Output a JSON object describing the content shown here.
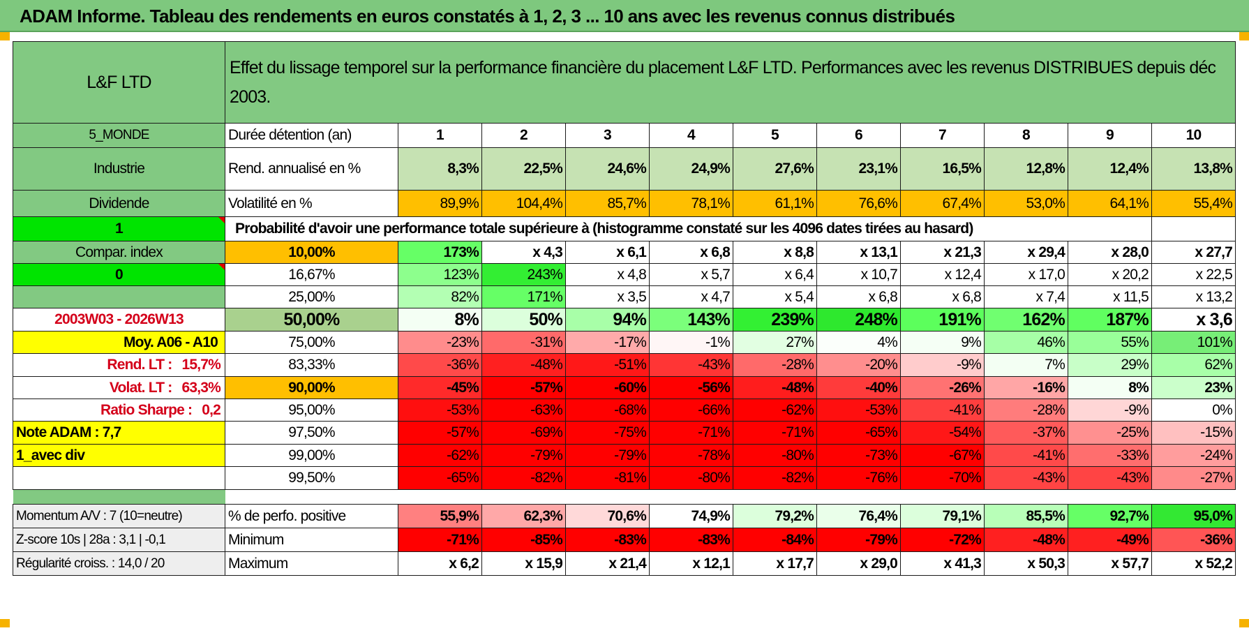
{
  "title": "ADAM Informe. Tableau des rendements en euros constatés à 1, 2, 3 ... 10 ans avec les revenus connus distribués",
  "header": {
    "fund": "L&F LTD",
    "description": "Effet du lissage temporel sur la performance financière du placement L&F LTD. Performances avec les revenus DISTRIBUES depuis déc 2003."
  },
  "left": {
    "category": "5_MONDE",
    "sector": "Industrie",
    "dividend": "Dividende",
    "input_1": "1",
    "compar_index": "Compar. index",
    "input_0": "0",
    "period": "2003W03 - 2026W13",
    "moy": "Moy. A06 - A10",
    "rend_lt_label": "Rend. LT :",
    "rend_lt_value": "15,7%",
    "volat_lt_label": "Volat. LT :",
    "volat_lt_value": "63,3%",
    "sharpe_label": "Ratio Sharpe :",
    "sharpe_value": "0,2",
    "note": "Note ADAM : 7,7",
    "avec_div": "1_avec div"
  },
  "rows": {
    "duree_label": "Durée détention (an)",
    "years": [
      "1",
      "2",
      "3",
      "4",
      "5",
      "6",
      "7",
      "8",
      "9",
      "10"
    ],
    "rend_label": "Rend. annualisé en %",
    "rend": [
      "8,3%",
      "22,5%",
      "24,6%",
      "24,9%",
      "27,6%",
      "23,1%",
      "16,5%",
      "12,8%",
      "12,4%",
      "13,8%"
    ],
    "vol_label": "Volatilité en %",
    "vol": [
      "89,9%",
      "104,4%",
      "85,7%",
      "78,1%",
      "61,1%",
      "76,6%",
      "67,4%",
      "53,0%",
      "64,1%",
      "55,4%"
    ],
    "proba_label": "Probabilité d'avoir une performance totale supérieure à (histogramme constaté sur les 4096 dates tirées au hasard)"
  },
  "percentiles": [
    {
      "p": "10,00%",
      "v": [
        "173%",
        "x 4,3",
        "x 6,1",
        "x 6,8",
        "x 8,8",
        "x 13,1",
        "x 21,3",
        "x 29,4",
        "x 28,0",
        "x 27,7"
      ]
    },
    {
      "p": "16,67%",
      "v": [
        "123%",
        "243%",
        "x 4,8",
        "x 5,7",
        "x 6,4",
        "x 10,7",
        "x 12,4",
        "x 17,0",
        "x 20,2",
        "x 22,5"
      ]
    },
    {
      "p": "25,00%",
      "v": [
        "82%",
        "171%",
        "x 3,5",
        "x 4,7",
        "x 5,4",
        "x 6,8",
        "x 6,8",
        "x 7,4",
        "x 11,5",
        "x 13,2"
      ]
    },
    {
      "p": "50,00%",
      "v": [
        "8%",
        "50%",
        "94%",
        "143%",
        "239%",
        "248%",
        "191%",
        "162%",
        "187%",
        "x 3,6"
      ]
    },
    {
      "p": "75,00%",
      "v": [
        "-23%",
        "-31%",
        "-17%",
        "-1%",
        "27%",
        "4%",
        "9%",
        "46%",
        "55%",
        "101%"
      ]
    },
    {
      "p": "83,33%",
      "v": [
        "-36%",
        "-48%",
        "-51%",
        "-43%",
        "-28%",
        "-20%",
        "-9%",
        "7%",
        "29%",
        "62%"
      ]
    },
    {
      "p": "90,00%",
      "v": [
        "-45%",
        "-57%",
        "-60%",
        "-56%",
        "-48%",
        "-40%",
        "-26%",
        "-16%",
        "8%",
        "23%"
      ]
    },
    {
      "p": "95,00%",
      "v": [
        "-53%",
        "-63%",
        "-68%",
        "-66%",
        "-62%",
        "-53%",
        "-41%",
        "-28%",
        "-9%",
        "0%"
      ]
    },
    {
      "p": "97,50%",
      "v": [
        "-57%",
        "-69%",
        "-75%",
        "-71%",
        "-71%",
        "-65%",
        "-54%",
        "-37%",
        "-25%",
        "-15%"
      ]
    },
    {
      "p": "99,00%",
      "v": [
        "-62%",
        "-79%",
        "-79%",
        "-78%",
        "-80%",
        "-73%",
        "-67%",
        "-41%",
        "-33%",
        "-24%"
      ]
    },
    {
      "p": "99,50%",
      "v": [
        "-65%",
        "-82%",
        "-81%",
        "-80%",
        "-82%",
        "-76%",
        "-70%",
        "-43%",
        "-43%",
        "-27%"
      ]
    }
  ],
  "colors": {
    "p10": [
      "#66ff66",
      "#ffffff",
      "#ffffff",
      "#ffffff",
      "#ffffff",
      "#ffffff",
      "#ffffff",
      "#ffffff",
      "#ffffff",
      "#ffffff"
    ],
    "p16": [
      "#8dff8d",
      "#33ee33",
      "#ffffff",
      "#ffffff",
      "#ffffff",
      "#ffffff",
      "#ffffff",
      "#ffffff",
      "#ffffff",
      "#ffffff"
    ],
    "p25": [
      "#b3ffb3",
      "#66ff66",
      "#ffffff",
      "#ffffff",
      "#ffffff",
      "#ffffff",
      "#ffffff",
      "#ffffff",
      "#ffffff",
      "#ffffff"
    ],
    "p50": [
      "#f4fff4",
      "#dcffdc",
      "#a8ffa8",
      "#7bff7b",
      "#33f033",
      "#2ee82e",
      "#5cff5c",
      "#70ff70",
      "#60ff60",
      "#ffffff"
    ],
    "p75": [
      "#ff8c8c",
      "#ff6a6a",
      "#ffaaaa",
      "#fff6f6",
      "#e2ffe2",
      "#fbfffb",
      "#f5fff5",
      "#a6ffa6",
      "#99ff99",
      "#77ee77"
    ],
    "p83": [
      "#ff4a4a",
      "#ff2020",
      "#ff1818",
      "#ff3535",
      "#ff6a6a",
      "#ff8e8e",
      "#ffcccc",
      "#f3fff3",
      "#c8ffc8",
      "#a8ffa8"
    ],
    "p90": [
      "#ff2a2a",
      "#ff0000",
      "#ff0000",
      "#ff0000",
      "#ff1d1d",
      "#ff3b3b",
      "#ff7272",
      "#ffa6a6",
      "#f4fff4",
      "#cbffcb"
    ],
    "p95": [
      "#ff0f0f",
      "#ff0000",
      "#ff0000",
      "#ff0000",
      "#ff0000",
      "#ff0f0f",
      "#ff3f3f",
      "#ff7c7c",
      "#ffd6d6",
      "#ffffff"
    ],
    "p97": [
      "#ff0000",
      "#ff0000",
      "#ff0000",
      "#ff0000",
      "#ff0000",
      "#ff0000",
      "#ff1717",
      "#ff5a5a",
      "#ff9090",
      "#ffc0c0"
    ],
    "p99": [
      "#ff0000",
      "#ff0000",
      "#ff0000",
      "#ff0000",
      "#ff0000",
      "#ff0000",
      "#ff0000",
      "#ff4a4a",
      "#ff6e6e",
      "#ff9d9d"
    ],
    "p995": [
      "#ff0000",
      "#ff0000",
      "#ff0000",
      "#ff0000",
      "#ff0000",
      "#ff0000",
      "#ff0000",
      "#ff4444",
      "#ff4444",
      "#ff8a8a"
    ],
    "perfo": [
      "#ff8080",
      "#ffa8a8",
      "#ffd9d9",
      "#ffffff",
      "#dcffdc",
      "#eaffea",
      "#dcffdc",
      "#b8ffb8",
      "#66ff66",
      "#33e833"
    ],
    "mini": [
      "#ff0000",
      "#ff0000",
      "#ff0000",
      "#ff0000",
      "#ff0000",
      "#ff0000",
      "#ff0000",
      "#ff2020",
      "#ff2020",
      "#ff5555"
    ]
  },
  "bottom": {
    "momentum": "Momentum A/V : 7 (10=neutre)",
    "zscore": "Z-score 10s | 28a : 3,1 | -0,1",
    "regularite": "Régularité croiss. : 14,0 / 20",
    "perfo_label": "% de perfo. positive",
    "perfo": [
      "55,9%",
      "62,3%",
      "70,6%",
      "74,9%",
      "79,2%",
      "76,4%",
      "79,1%",
      "85,5%",
      "92,7%",
      "95,0%"
    ],
    "min_label": "Minimum",
    "min": [
      "-71%",
      "-85%",
      "-83%",
      "-83%",
      "-84%",
      "-79%",
      "-72%",
      "-48%",
      "-49%",
      "-36%"
    ],
    "max_label": "Maximum",
    "max": [
      "x 6,2",
      "x 15,9",
      "x 21,4",
      "x 12,1",
      "x 17,7",
      "x 29,0",
      "x 41,3",
      "x 50,3",
      "x 57,7",
      "x 52,2"
    ]
  }
}
